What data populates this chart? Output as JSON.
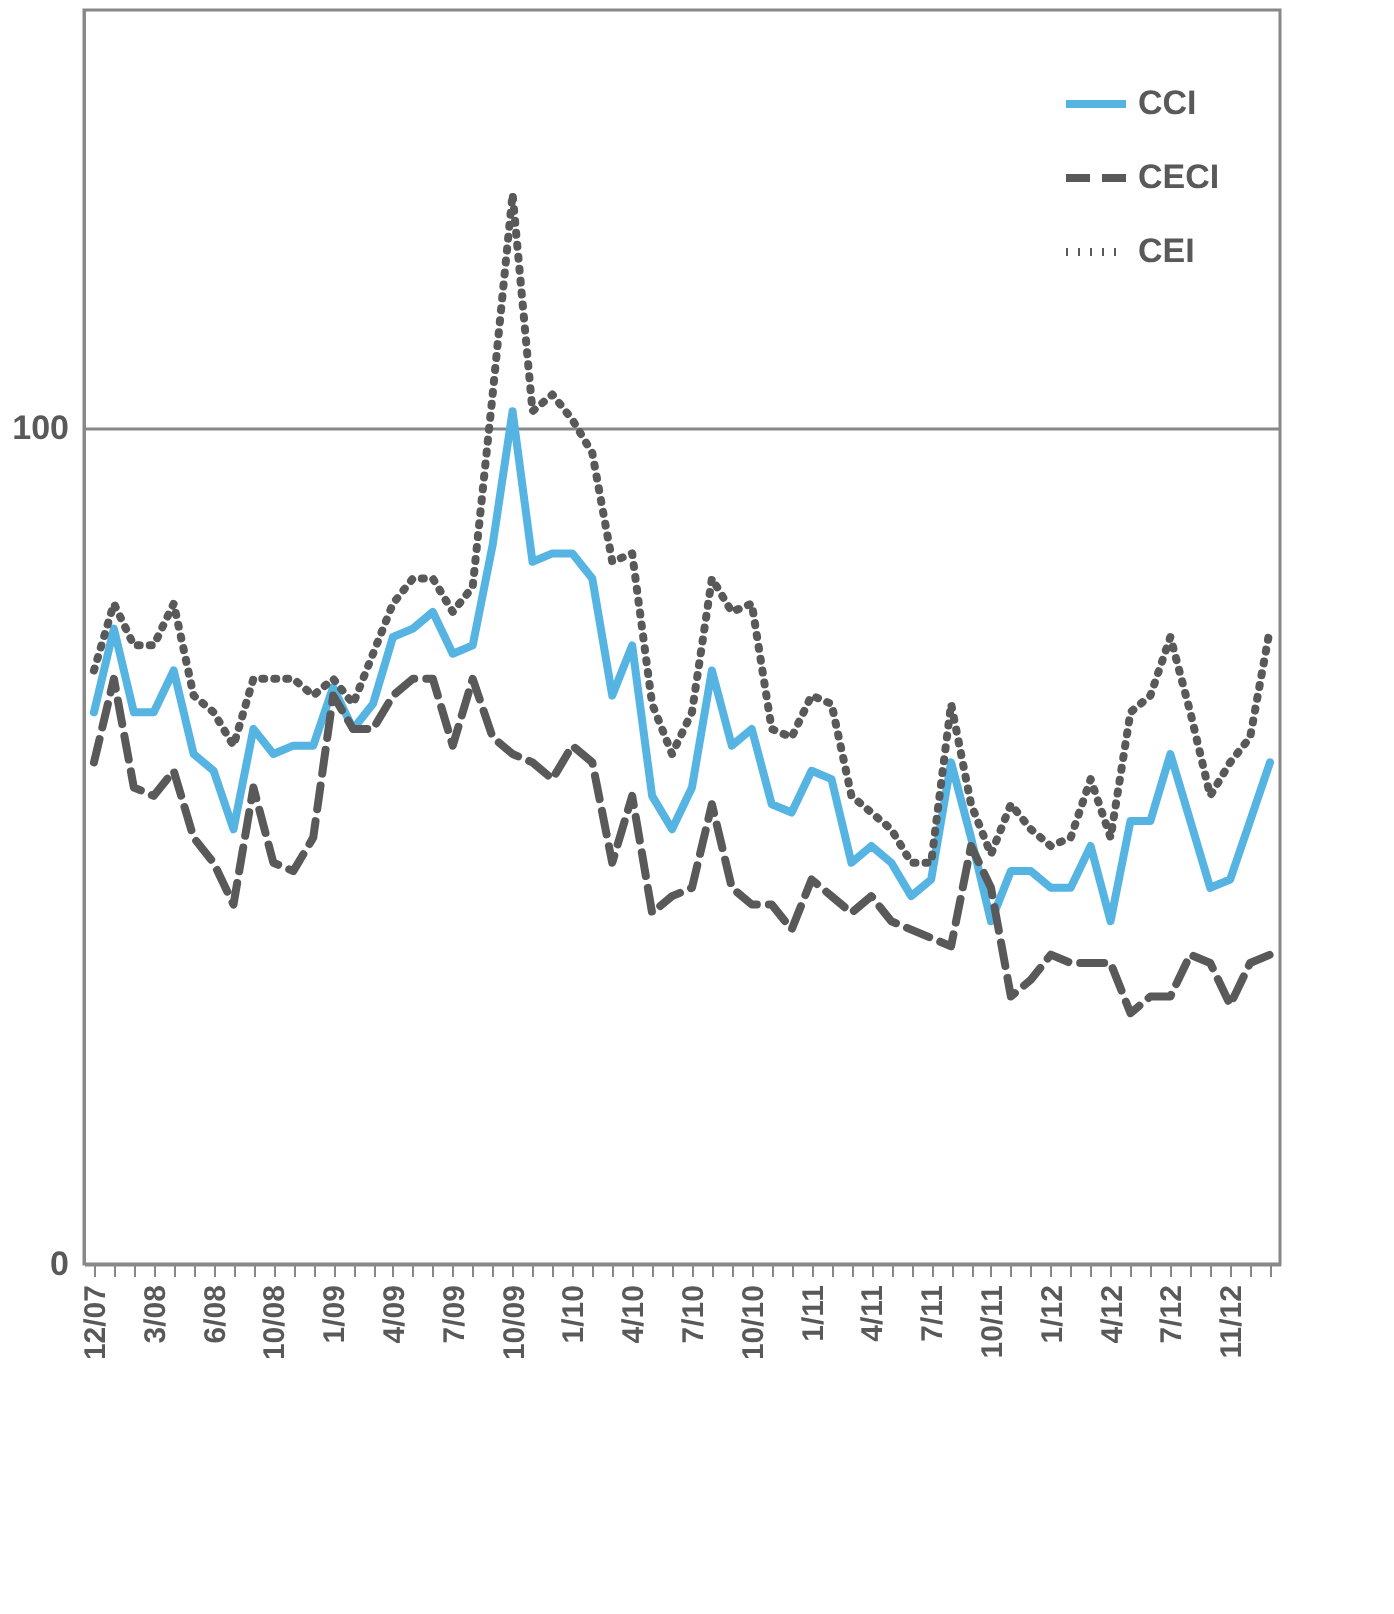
{
  "chart_data": {
    "type": "line",
    "categories": [
      "12/07",
      null,
      null,
      "3/08",
      null,
      null,
      "6/08",
      null,
      null,
      "10/08",
      null,
      null,
      "1/09",
      null,
      null,
      "4/09",
      null,
      null,
      "7/09",
      null,
      null,
      "10/09",
      null,
      null,
      "1/10",
      null,
      null,
      "4/10",
      null,
      null,
      "7/10",
      null,
      null,
      "10/10",
      null,
      null,
      "1/11",
      null,
      null,
      "4/11",
      null,
      null,
      "7/11",
      null,
      null,
      "10/11",
      null,
      null,
      "1/12",
      null,
      null,
      "4/12",
      null,
      null,
      "7/12",
      null,
      null,
      "11/12",
      null,
      null
    ],
    "series": [
      {
        "name": "CCI",
        "color": "#56b4e3",
        "line_style": "solid",
        "values": [
          66,
          76,
          66,
          66,
          71,
          61,
          59,
          52,
          64,
          61,
          62,
          62,
          69,
          64,
          67,
          75,
          76,
          78,
          73,
          74,
          86,
          102,
          84,
          85,
          85,
          82,
          68,
          74,
          56,
          52,
          57,
          71,
          62,
          64,
          55,
          54,
          59,
          58,
          48,
          50,
          48,
          44,
          46,
          60,
          51,
          41,
          47,
          47,
          45,
          45,
          50,
          41,
          53,
          53,
          61,
          53,
          45,
          46,
          53,
          60
        ]
      },
      {
        "name": "CECI",
        "color": "#595959",
        "line_style": "dashed",
        "values": [
          60,
          70,
          57,
          56,
          59,
          51,
          48,
          43,
          57,
          48,
          47,
          51,
          68,
          64,
          64,
          68,
          70,
          70,
          62,
          70,
          63,
          61,
          60,
          58,
          62,
          60,
          48,
          56,
          42,
          44,
          45,
          55,
          45,
          43,
          43,
          40,
          46,
          44,
          42,
          44,
          41,
          40,
          39,
          38,
          50,
          45,
          32,
          34,
          37,
          36,
          36,
          36,
          30,
          32,
          32,
          37,
          36,
          31,
          36,
          37
        ]
      },
      {
        "name": "CEI",
        "color": "#595959",
        "line_style": "dotted",
        "values": [
          71,
          79,
          74,
          74,
          79,
          68,
          66,
          62,
          70,
          70,
          70,
          68,
          70,
          67,
          73,
          79,
          82,
          82,
          78,
          81,
          104,
          128,
          102,
          104,
          101,
          97,
          84,
          85,
          67,
          61,
          66,
          82,
          78,
          79,
          64,
          63,
          68,
          67,
          56,
          54,
          52,
          48,
          48,
          67,
          55,
          49,
          55,
          52,
          50,
          51,
          58,
          51,
          66,
          68,
          75,
          66,
          56,
          60,
          63,
          76
        ]
      }
    ],
    "ylim": [
      0,
      150
    ],
    "yticks": [
      0,
      100
    ],
    "grid": "y",
    "legend": "top right"
  }
}
